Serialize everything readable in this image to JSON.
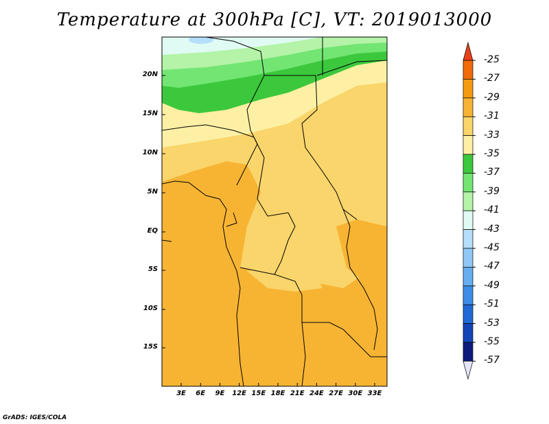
{
  "title": "Temperature at 300hPa [C], VT: 2019013000",
  "credit": "GrADS: IGES/COLA",
  "map": {
    "lat_labels": [
      "20N",
      "15N",
      "10N",
      "5N",
      "EQ",
      "5S",
      "10S",
      "15S"
    ],
    "lon_labels": [
      "3E",
      "6E",
      "9E",
      "12E",
      "15E",
      "18E",
      "21E",
      "24E",
      "27E",
      "30E",
      "33E"
    ]
  },
  "colorbar": {
    "labels": [
      "-25",
      "-27",
      "-29",
      "-31",
      "-33",
      "-35",
      "-37",
      "-39",
      "-41",
      "-43",
      "-45",
      "-47",
      "-49",
      "-51",
      "-53",
      "-55",
      "-57"
    ],
    "colors": [
      "#e8421a",
      "#f26b0a",
      "#f59a0f",
      "#f7b433",
      "#f9d56b",
      "#fdf0a4",
      "#3cc83c",
      "#73e573",
      "#b4f3a8",
      "#e0fbf3",
      "#b5defa",
      "#90c8f5",
      "#67aef0",
      "#3c8de6",
      "#1f6ad6",
      "#1246b8",
      "#0d1b7a",
      "#e6e6fa"
    ]
  }
}
